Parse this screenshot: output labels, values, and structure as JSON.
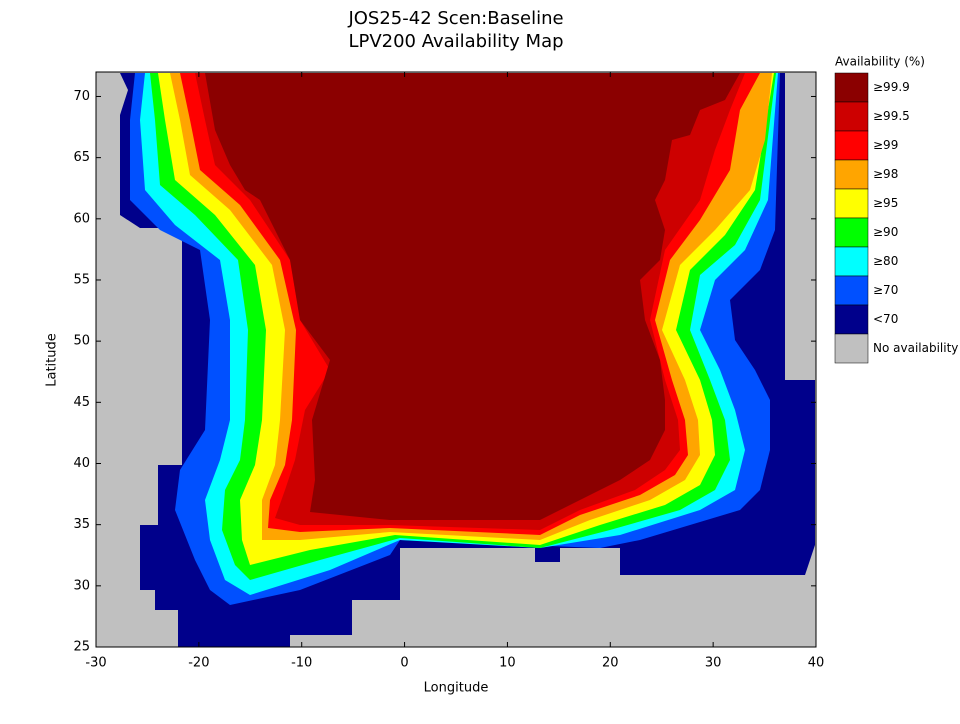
{
  "chart_data": {
    "type": "map",
    "title": "JOS25-42 Scen:Baseline",
    "subtitle": "LPV200 Availability Map",
    "x_label": "Longitude",
    "y_label": "Latitude",
    "xlim": [
      -30,
      40
    ],
    "xticks": [
      -30,
      -20,
      -10,
      0,
      10,
      20,
      30,
      40
    ],
    "ylim": [
      25,
      72
    ],
    "yticks": [
      25,
      30,
      35,
      40,
      45,
      50,
      55,
      60,
      65,
      70
    ],
    "legend": {
      "title": "Availability (%)",
      "entries": [
        {
          "label": "≥99.9",
          "color": "#8b0000"
        },
        {
          "label": "≥99.5",
          "color": "#cd0000"
        },
        {
          "label": "≥99",
          "color": "#ff0000"
        },
        {
          "label": "≥98",
          "color": "#ffa500"
        },
        {
          "label": "≥95",
          "color": "#ffff00"
        },
        {
          "label": "≥90",
          "color": "#00ff00"
        },
        {
          "label": "≥80",
          "color": "#00ffff"
        },
        {
          "label": "≥70",
          "color": "#0050ff"
        },
        {
          "label": "<70",
          "color": "#00008b"
        },
        {
          "label": "No availability",
          "color": "#c0c0c0"
        }
      ]
    }
  }
}
